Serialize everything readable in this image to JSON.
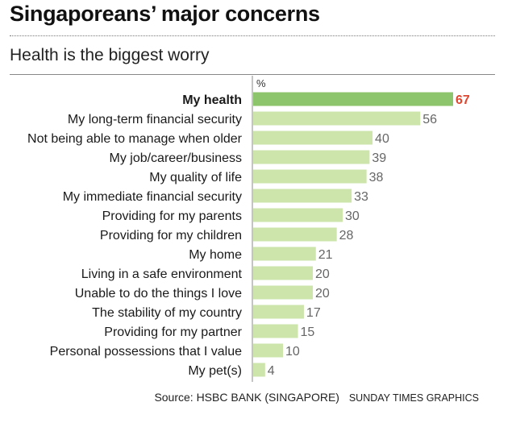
{
  "header": {
    "title": "Singaporeans’ major concerns",
    "subtitle": "Health is the biggest worry"
  },
  "footer": {
    "source": "Source: HSBC BANK (SINGAPORE)",
    "credit": "SUNDAY TIMES GRAPHICS"
  },
  "colors": {
    "highlight_bar": "#8cc56b",
    "bar": "#cde4ab",
    "highlight_value": "#e0452f",
    "value": "#666666",
    "axis": "#888888"
  },
  "chart_data": {
    "type": "bar",
    "orientation": "horizontal",
    "unit_label": "%",
    "categories": [
      "My health",
      "My long-term financial security",
      "Not being able to manage when older",
      "My job/career/business",
      "My quality of life",
      "My immediate financial security",
      "Providing for my parents",
      "Providing for my children",
      "My home",
      "Living in a safe environment",
      "Unable to do the things I love",
      "The stability of my country",
      "Providing for my partner",
      "Personal possessions that I value",
      "My pet(s)"
    ],
    "values": [
      67,
      56,
      40,
      39,
      38,
      33,
      30,
      28,
      21,
      20,
      20,
      17,
      15,
      10,
      4
    ],
    "highlight_index": 0,
    "xlim": [
      0,
      67
    ],
    "grid": false,
    "legend": "none"
  }
}
